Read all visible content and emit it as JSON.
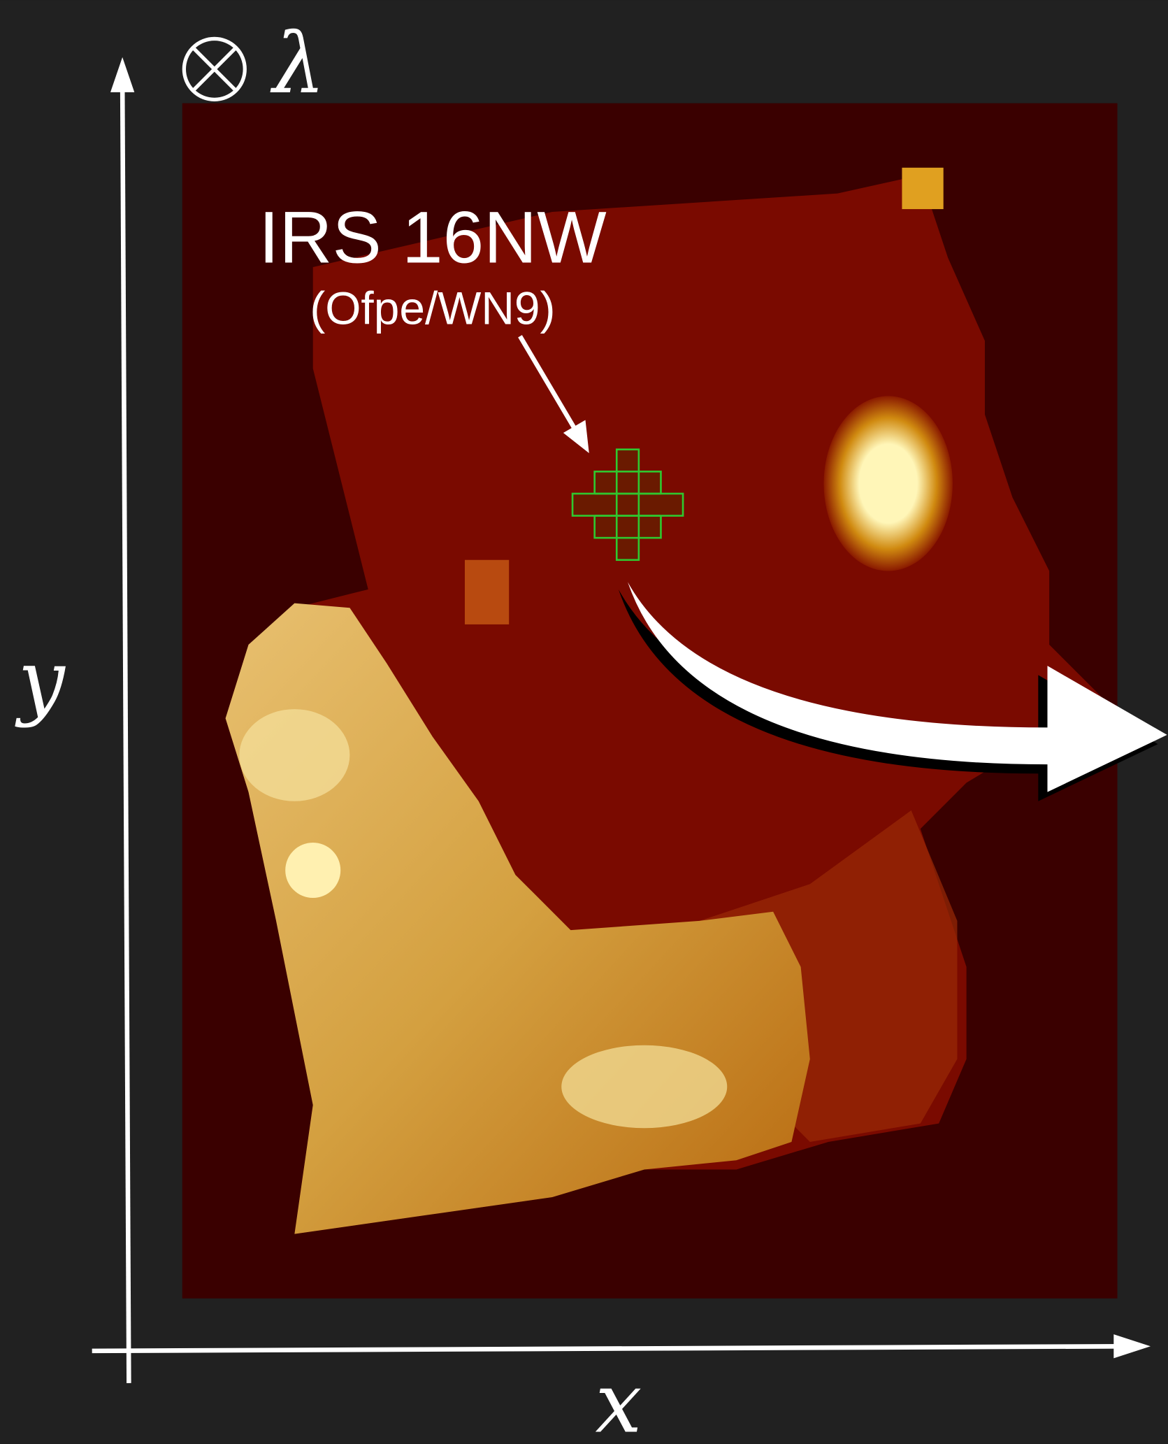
{
  "annotation": {
    "name": "IRS 16NW",
    "type": "(Ofpe/WN9)"
  },
  "axes": {
    "x": "x",
    "y": "y",
    "depth": "λ"
  }
}
